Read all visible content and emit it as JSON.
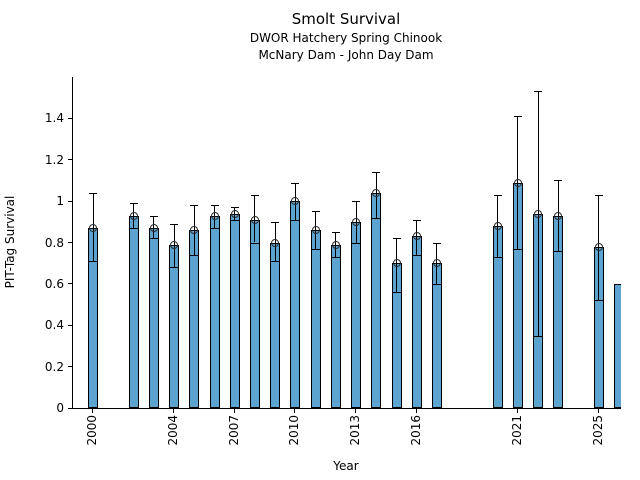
{
  "chart_data": {
    "type": "bar",
    "title": "Smolt Survival",
    "subtitle1": "DWOR Hatchery Spring Chinook",
    "subtitle2": "McNary Dam - John Day Dam",
    "xlabel": "Year",
    "ylabel": "PIT-Tag Survival",
    "xlim": [
      1999,
      2026.1
    ],
    "ylim": [
      0,
      1.6
    ],
    "xticks": [
      2000,
      2004,
      2007,
      2010,
      2013,
      2016,
      2021,
      2025
    ],
    "yticks": [
      0,
      0.2,
      0.4,
      0.6,
      0.8,
      1,
      1.2,
      1.4
    ],
    "ytick_labels": [
      "0",
      "0.2",
      "0.4",
      "0.6",
      "0.8",
      "1",
      "1.2",
      "1.4"
    ],
    "grid": false,
    "legend": "none",
    "bar_color": "#5ca4cf",
    "bar_edge_color": "#000000",
    "errorbar_color": "#000000",
    "series": [
      {
        "year": 2000,
        "value": 0.87,
        "err_lo": 0.71,
        "err_hi": 1.04
      },
      {
        "year": 2002,
        "value": 0.93,
        "err_lo": 0.87,
        "err_hi": 0.99
      },
      {
        "year": 2003,
        "value": 0.87,
        "err_lo": 0.82,
        "err_hi": 0.93
      },
      {
        "year": 2004,
        "value": 0.79,
        "err_lo": 0.68,
        "err_hi": 0.89
      },
      {
        "year": 2005,
        "value": 0.86,
        "err_lo": 0.74,
        "err_hi": 0.98
      },
      {
        "year": 2006,
        "value": 0.93,
        "err_lo": 0.87,
        "err_hi": 0.98
      },
      {
        "year": 2007,
        "value": 0.94,
        "err_lo": 0.91,
        "err_hi": 0.97
      },
      {
        "year": 2008,
        "value": 0.91,
        "err_lo": 0.8,
        "err_hi": 1.03
      },
      {
        "year": 2009,
        "value": 0.8,
        "err_lo": 0.71,
        "err_hi": 0.9
      },
      {
        "year": 2010,
        "value": 1.0,
        "err_lo": 0.91,
        "err_hi": 1.09
      },
      {
        "year": 2011,
        "value": 0.86,
        "err_lo": 0.77,
        "err_hi": 0.95
      },
      {
        "year": 2012,
        "value": 0.79,
        "err_lo": 0.73,
        "err_hi": 0.85
      },
      {
        "year": 2013,
        "value": 0.9,
        "err_lo": 0.8,
        "err_hi": 1.0
      },
      {
        "year": 2014,
        "value": 1.04,
        "err_lo": 0.92,
        "err_hi": 1.14
      },
      {
        "year": 2015,
        "value": 0.7,
        "err_lo": 0.56,
        "err_hi": 0.82
      },
      {
        "year": 2016,
        "value": 0.83,
        "err_lo": 0.74,
        "err_hi": 0.91
      },
      {
        "year": 2017,
        "value": 0.7,
        "err_lo": 0.6,
        "err_hi": 0.8
      },
      {
        "year": 2020,
        "value": 0.88,
        "err_lo": 0.73,
        "err_hi": 1.03
      },
      {
        "year": 2021,
        "value": 1.09,
        "err_lo": 0.77,
        "err_hi": 1.41
      },
      {
        "year": 2022,
        "value": 0.94,
        "err_lo": 0.35,
        "err_hi": 1.53
      },
      {
        "year": 2023,
        "value": 0.93,
        "err_lo": 0.76,
        "err_hi": 1.1
      },
      {
        "year": 2025,
        "value": 0.78,
        "err_lo": 0.52,
        "err_hi": 1.03
      },
      {
        "year": 2026,
        "value": 0.6,
        "err_lo": null,
        "err_hi": null,
        "clipped": true
      }
    ]
  }
}
